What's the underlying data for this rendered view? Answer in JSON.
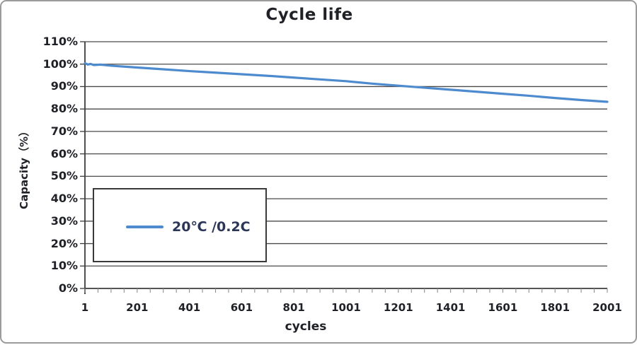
{
  "window": {
    "background": "#ffffff",
    "border_color": "#9b9b9b"
  },
  "chart_data": {
    "type": "line",
    "title": "Cycle life",
    "xlabel": "cycles",
    "ylabel": "Capacity（%）",
    "xlim": [
      1,
      2001
    ],
    "ylim": [
      0,
      110
    ],
    "grid": "horizontal",
    "y_tick_step": 10,
    "y_tick_labels": [
      "0%",
      "10%",
      "20%",
      "30%",
      "40%",
      "50%",
      "60%",
      "70%",
      "80%",
      "90%",
      "100%",
      "110%"
    ],
    "x_tick_values": [
      1,
      201,
      401,
      601,
      801,
      1001,
      1201,
      1401,
      1601,
      1801,
      2001
    ],
    "x_tick_labels": [
      "1",
      "201",
      "401",
      "601",
      "801",
      "1001",
      "1201",
      "1401",
      "1601",
      "1801",
      "2001"
    ],
    "x_minor_tick_step": 50,
    "legend": {
      "position": "inside-left",
      "border": true,
      "entries": [
        {
          "label": "20℃ /0.2C",
          "color": "#4d8bce"
        }
      ]
    },
    "series": [
      {
        "name": "20℃ /0.2C",
        "color": "#4d8bce",
        "x": [
          1,
          12,
          22,
          35,
          60,
          101,
          201,
          301,
          401,
          501,
          601,
          701,
          801,
          901,
          1001,
          1101,
          1201,
          1301,
          1401,
          1501,
          1601,
          1701,
          1801,
          1901,
          2001
        ],
        "y": [
          100.4,
          99.8,
          100.1,
          99.6,
          99.8,
          99.3,
          98.5,
          97.7,
          96.9,
          96.2,
          95.5,
          94.8,
          94.0,
          93.2,
          92.4,
          91.3,
          90.4,
          89.5,
          88.6,
          87.7,
          86.8,
          85.9,
          84.9,
          84.0,
          83.2
        ]
      }
    ]
  },
  "colors": {
    "series_line": "#4d8bce",
    "gridline": "#4a4a4a",
    "axis": "#3c3c3c",
    "minor_tick": "#8f8f8f",
    "text": "#1f2126",
    "legend_text": "#2c3658"
  }
}
